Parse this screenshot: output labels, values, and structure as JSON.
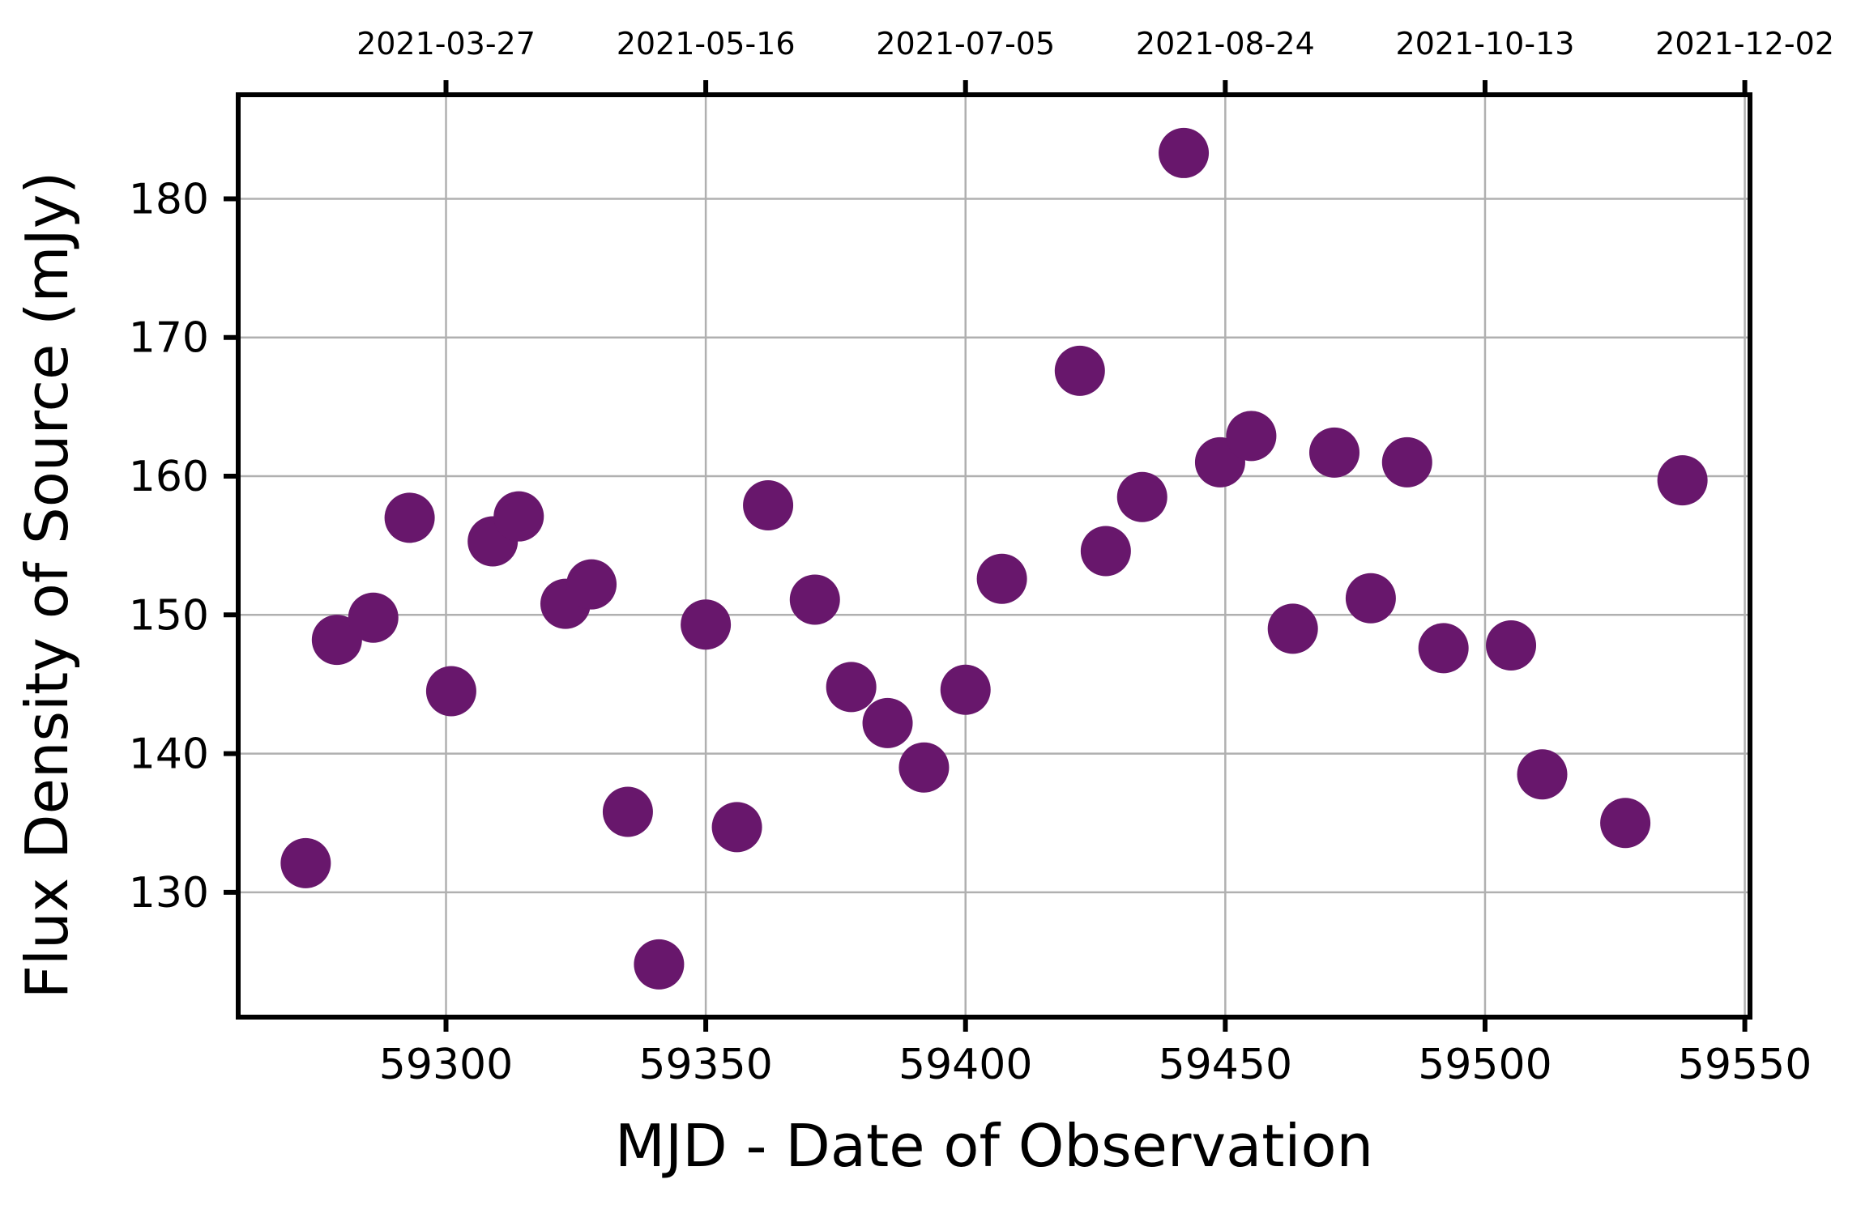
{
  "chart_data": {
    "type": "scatter",
    "xlabel": "MJD - Date of Observation",
    "ylabel": "Flux Density of Source (mJy)",
    "xlim": [
      59260,
      59551
    ],
    "ylim": [
      121,
      187.5
    ],
    "x_ticks": [
      59300,
      59350,
      59400,
      59450,
      59500,
      59550
    ],
    "x_tick_labels": [
      "59300",
      "59350",
      "59400",
      "59450",
      "59500",
      "59550"
    ],
    "y_ticks": [
      130,
      140,
      150,
      160,
      170,
      180
    ],
    "y_tick_labels": [
      "130",
      "140",
      "150",
      "160",
      "170",
      "180"
    ],
    "secondary_x_ticks": [
      59300,
      59350,
      59400,
      59450,
      59500,
      59550
    ],
    "secondary_x_tick_labels": [
      "2021-03-27",
      "2021-05-16",
      "2021-07-05",
      "2021-08-24",
      "2021-10-13",
      "2021-12-02"
    ],
    "grid": true,
    "marker_color": "#68176c",
    "points": [
      {
        "x": 59273,
        "y": 132.1
      },
      {
        "x": 59279,
        "y": 148.2
      },
      {
        "x": 59286,
        "y": 149.8
      },
      {
        "x": 59293,
        "y": 157.0
      },
      {
        "x": 59301,
        "y": 144.5
      },
      {
        "x": 59309,
        "y": 155.3
      },
      {
        "x": 59314,
        "y": 157.1
      },
      {
        "x": 59323,
        "y": 150.8
      },
      {
        "x": 59328,
        "y": 152.2
      },
      {
        "x": 59335,
        "y": 135.8
      },
      {
        "x": 59341,
        "y": 124.8
      },
      {
        "x": 59350,
        "y": 149.3
      },
      {
        "x": 59356,
        "y": 134.7
      },
      {
        "x": 59362,
        "y": 157.9
      },
      {
        "x": 59371,
        "y": 151.1
      },
      {
        "x": 59378,
        "y": 144.8
      },
      {
        "x": 59385,
        "y": 142.2
      },
      {
        "x": 59392,
        "y": 139.0
      },
      {
        "x": 59400,
        "y": 144.6
      },
      {
        "x": 59407,
        "y": 152.6
      },
      {
        "x": 59422,
        "y": 167.6
      },
      {
        "x": 59427,
        "y": 154.6
      },
      {
        "x": 59434,
        "y": 158.5
      },
      {
        "x": 59442,
        "y": 183.3
      },
      {
        "x": 59449,
        "y": 161.0
      },
      {
        "x": 59455,
        "y": 162.9
      },
      {
        "x": 59463,
        "y": 149.0
      },
      {
        "x": 59471,
        "y": 161.7
      },
      {
        "x": 59478,
        "y": 151.2
      },
      {
        "x": 59485,
        "y": 161.0
      },
      {
        "x": 59492,
        "y": 147.6
      },
      {
        "x": 59505,
        "y": 147.8
      },
      {
        "x": 59511,
        "y": 138.5
      },
      {
        "x": 59527,
        "y": 135.0
      },
      {
        "x": 59538,
        "y": 159.7
      }
    ]
  }
}
